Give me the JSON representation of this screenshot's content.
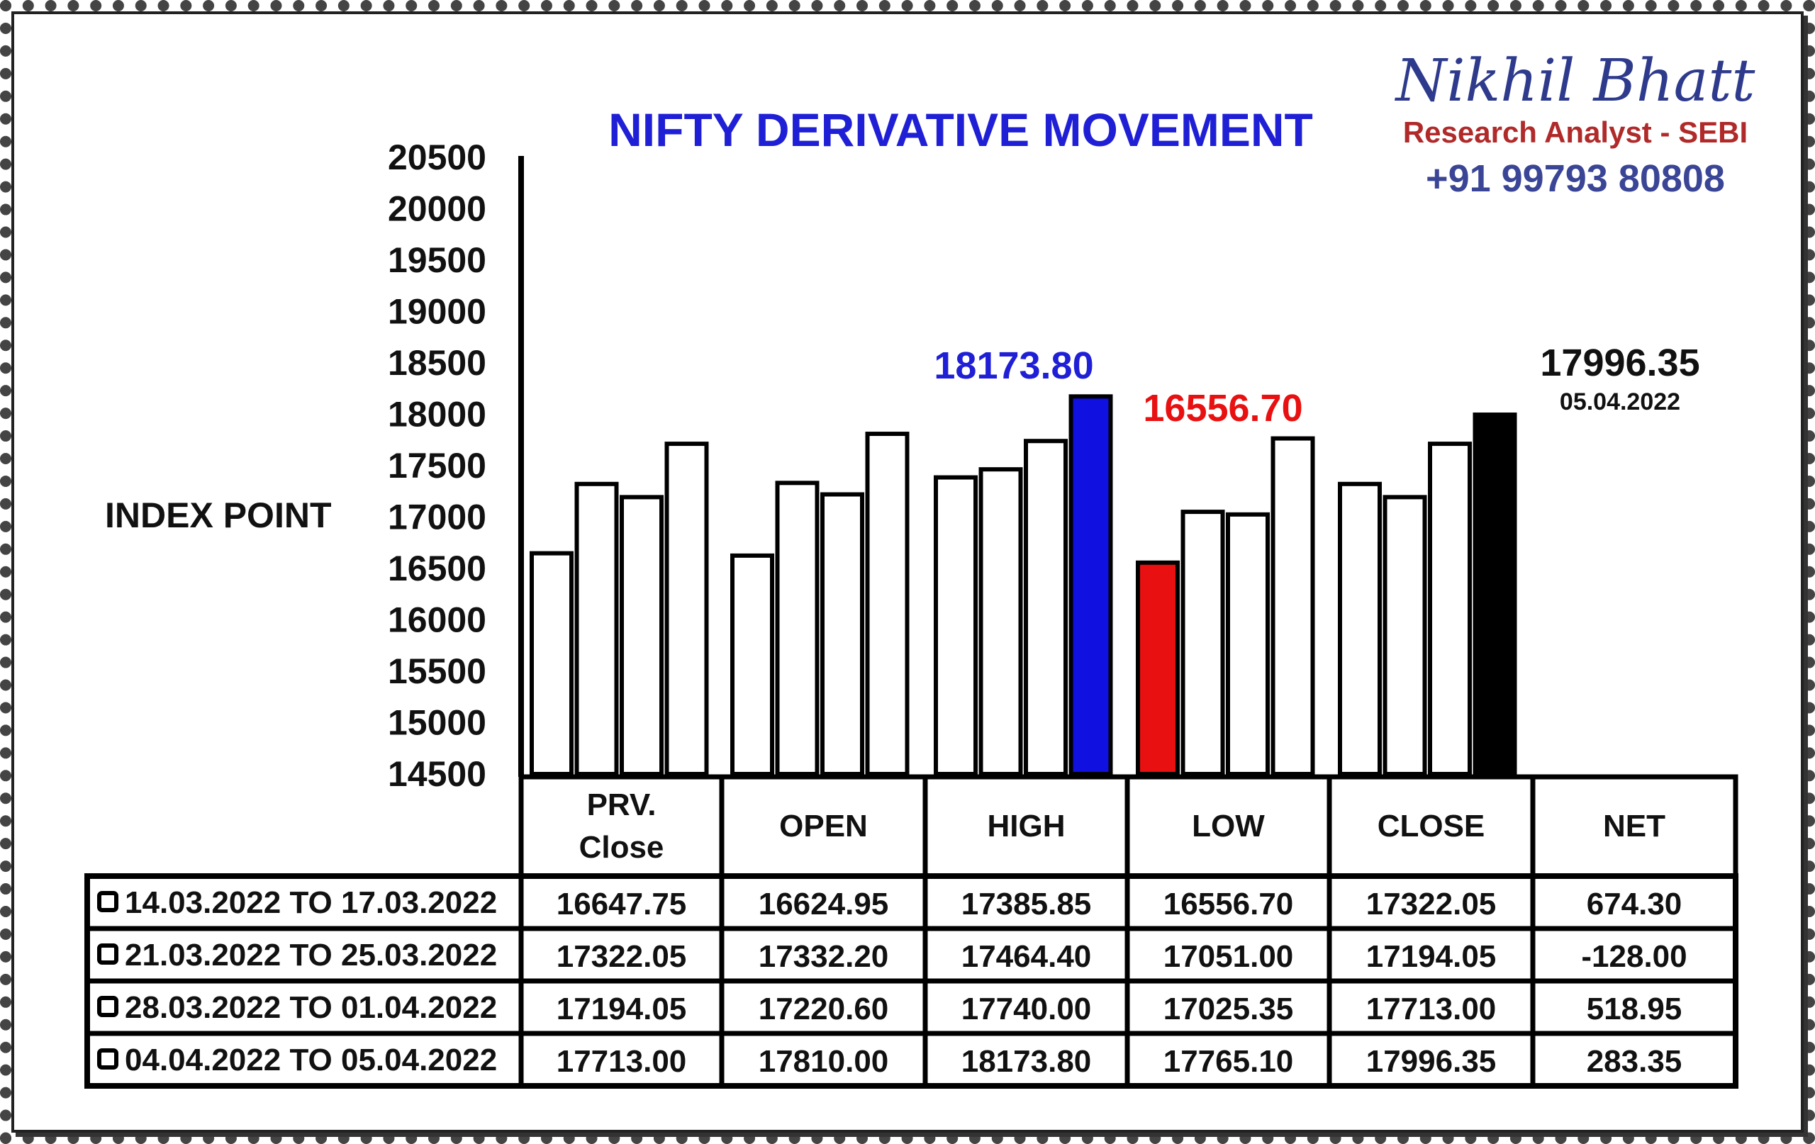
{
  "brand": {
    "name": "Nikhil Bhatt",
    "subtitle": "Research Analyst - SEBI",
    "phone": "+91 99793 80808"
  },
  "chart_data": {
    "type": "bar",
    "title": "NIFTY DERIVATIVE MOVEMENT",
    "ylabel": "INDEX POINT",
    "xlabel": "",
    "ylim": [
      14500,
      20500
    ],
    "yticks": [
      "20500",
      "20000",
      "19500",
      "19000",
      "18500",
      "18000",
      "17500",
      "17000",
      "16500",
      "16000",
      "15500",
      "15000",
      "14500"
    ],
    "categories": [
      "PRV. Close",
      "OPEN",
      "HIGH",
      "LOW",
      "CLOSE"
    ],
    "series": [
      {
        "name": "14.03.2022 TO 17.03.2022",
        "values": [
          16647.75,
          16624.95,
          17385.85,
          16556.7,
          17322.05
        ]
      },
      {
        "name": "21.03.2022 TO 25.03.2022",
        "values": [
          17322.05,
          17332.2,
          17464.4,
          17051.0,
          17194.05
        ]
      },
      {
        "name": "28.03.2022 TO 01.04.2022",
        "values": [
          17194.05,
          17220.6,
          17740.0,
          17025.35,
          17713.0
        ]
      },
      {
        "name": "04.04.2022 TO 05.04.2022",
        "values": [
          17713.0,
          17810.0,
          18173.8,
          17765.1,
          17996.35
        ]
      }
    ],
    "highlights": [
      {
        "category": "HIGH",
        "series": 3,
        "color": "#1010e0"
      },
      {
        "category": "LOW",
        "series": 0,
        "color": "#e81010"
      },
      {
        "category": "CLOSE",
        "series": 3,
        "color": "#000000"
      }
    ],
    "annotations": {
      "high": "18173.80",
      "low": "16556.70",
      "close": "17996.35",
      "close_date": "05.04.2022"
    },
    "table": {
      "header_line1": [
        "PRV.",
        "OPEN",
        "HIGH",
        "LOW",
        "CLOSE",
        "NET"
      ],
      "header_line2": [
        "Close",
        "",
        "",
        "",
        "",
        ""
      ],
      "rows": [
        {
          "label": "14.03.2022 TO 17.03.2022",
          "cells": [
            "16647.75",
            "16624.95",
            "17385.85",
            "16556.70",
            "17322.05",
            "674.30"
          ]
        },
        {
          "label": "21.03.2022 TO 25.03.2022",
          "cells": [
            "17322.05",
            "17332.20",
            "17464.40",
            "17051.00",
            "17194.05",
            "-128.00"
          ]
        },
        {
          "label": "28.03.2022 TO 01.04.2022",
          "cells": [
            "17194.05",
            "17220.60",
            "17740.00",
            "17025.35",
            "17713.00",
            "518.95"
          ]
        },
        {
          "label": "04.04.2022 TO 05.04.2022",
          "cells": [
            "17713.00",
            "17810.00",
            "18173.80",
            "17765.10",
            "17996.35",
            "283.35"
          ]
        }
      ]
    }
  }
}
